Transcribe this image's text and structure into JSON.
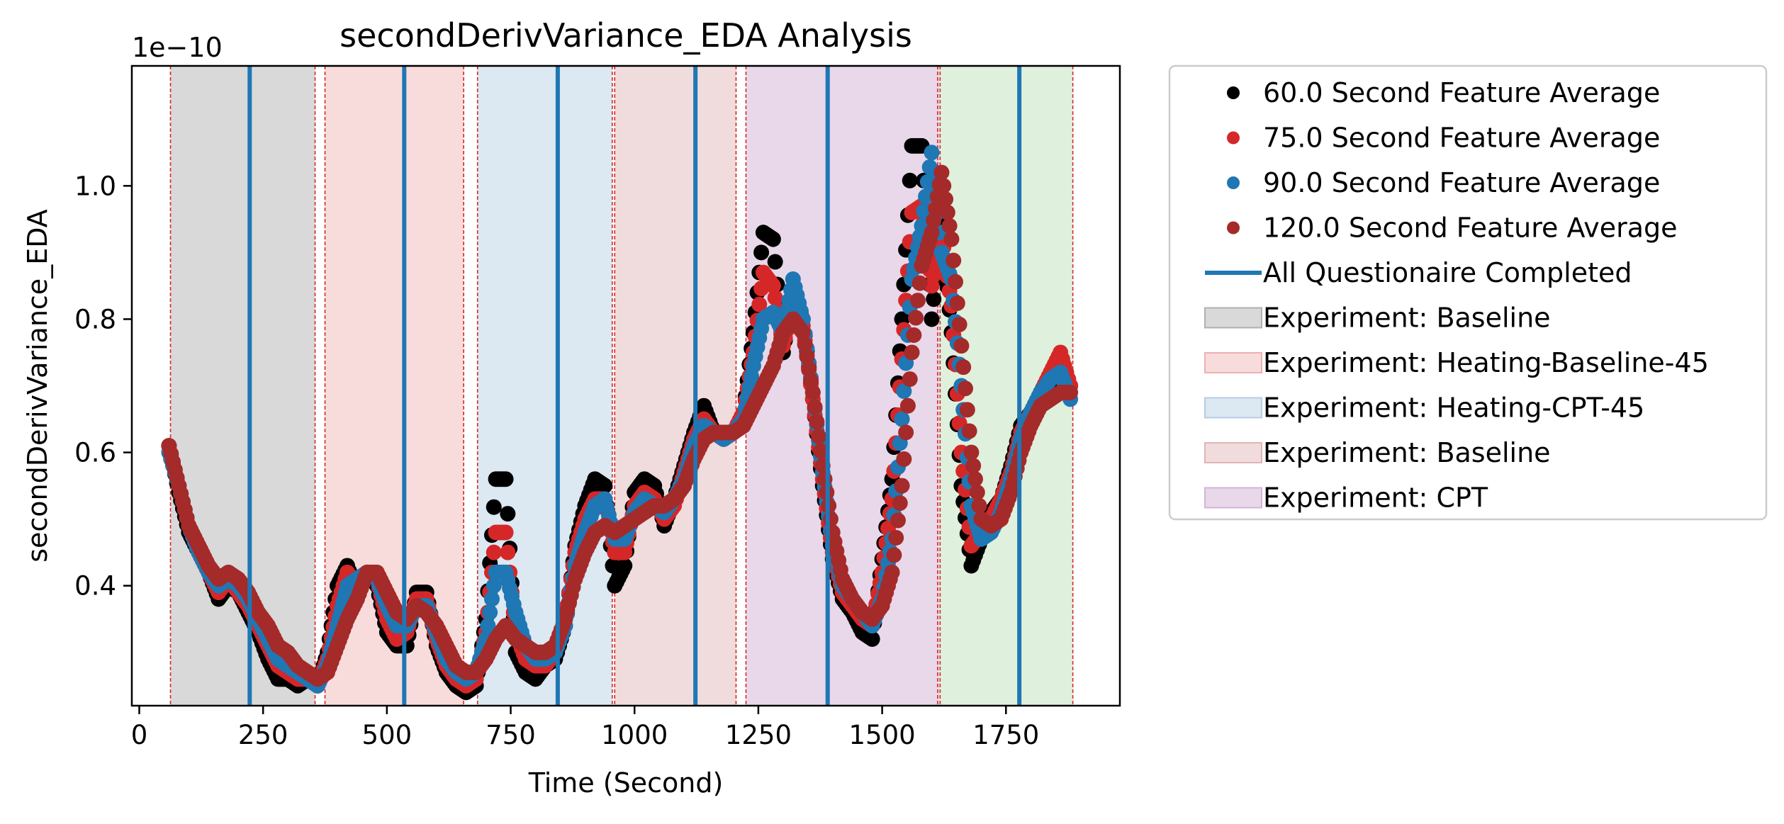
{
  "chart_data": {
    "type": "scatter",
    "title": "secondDerivVariance_EDA Analysis",
    "xlabel": "Time (Second)",
    "ylabel": "secondDerivVariance_EDA",
    "y_scale_note": "1e−10",
    "xlim": [
      -15,
      1980
    ],
    "ylim": [
      2.2e-11,
      1.18e-10
    ],
    "x_ticks": [
      {
        "value": 0,
        "label": "0"
      },
      {
        "value": 250,
        "label": "250"
      },
      {
        "value": 500,
        "label": "500"
      },
      {
        "value": 750,
        "label": "750"
      },
      {
        "value": 1000,
        "label": "1000"
      },
      {
        "value": 1250,
        "label": "1250"
      },
      {
        "value": 1500,
        "label": "1500"
      },
      {
        "value": 1750,
        "label": "1750"
      }
    ],
    "y_ticks": [
      {
        "value": 4e-11,
        "label": "0.4"
      },
      {
        "value": 6e-11,
        "label": "0.6"
      },
      {
        "value": 8e-11,
        "label": "0.8"
      },
      {
        "value": 1e-10,
        "label": "1.0"
      }
    ],
    "grid": false,
    "legend_placement": "outside-right",
    "spans": [
      {
        "start": 63,
        "end": 355,
        "color": "#d9d9d9",
        "label": "Experiment: Baseline"
      },
      {
        "start": 375,
        "end": 655,
        "color": "#f8dcdc",
        "label": "Experiment: Heating-Baseline-45"
      },
      {
        "start": 683,
        "end": 955,
        "color": "#dce8f2",
        "label": "Experiment: Heating-CPT-45"
      },
      {
        "start": 960,
        "end": 1205,
        "color": "#f0dcdc",
        "label": "Experiment: Baseline"
      },
      {
        "start": 1225,
        "end": 1615,
        "color": "#e8d8ea",
        "label": "Experiment: CPT"
      },
      {
        "start": 1615,
        "end": 1885,
        "color": "#dff0dc",
        "label": ""
      }
    ],
    "boundary_lines": [
      63,
      355,
      375,
      655,
      683,
      955,
      960,
      1205,
      1225,
      1612,
      1617,
      1885
    ],
    "questionnaire_lines": [
      223,
      535,
      845,
      1123,
      1390,
      1777
    ],
    "series": [
      {
        "name": "60.0 Second Feature Average",
        "color": "#000000",
        "x": [
          60,
          80,
          100,
          120,
          140,
          160,
          180,
          200,
          220,
          240,
          260,
          280,
          300,
          320,
          340,
          360,
          380,
          400,
          420,
          440,
          460,
          480,
          500,
          520,
          540,
          560,
          580,
          600,
          620,
          640,
          660,
          680,
          700,
          720,
          740,
          760,
          780,
          800,
          820,
          840,
          860,
          880,
          900,
          920,
          940,
          960,
          980,
          1000,
          1020,
          1040,
          1060,
          1080,
          1100,
          1120,
          1140,
          1160,
          1180,
          1200,
          1220,
          1240,
          1260,
          1280,
          1300,
          1320,
          1340,
          1360,
          1380,
          1400,
          1420,
          1440,
          1460,
          1480,
          1500,
          1520,
          1540,
          1560,
          1580,
          1600,
          1620,
          1640,
          1660,
          1680,
          1700,
          1720,
          1740,
          1760,
          1780,
          1800,
          1820,
          1840,
          1860,
          1880
        ],
        "y": [
          6.1e-11,
          5.4e-11,
          4.8e-11,
          4.5e-11,
          4.2e-11,
          3.8e-11,
          4e-11,
          3.9e-11,
          3.6e-11,
          3.3e-11,
          2.9e-11,
          2.6e-11,
          2.6e-11,
          2.5e-11,
          2.6e-11,
          2.5e-11,
          3e-11,
          4e-11,
          4.3e-11,
          3.9e-11,
          4.2e-11,
          4e-11,
          3.3e-11,
          3.1e-11,
          3.1e-11,
          3.9e-11,
          3.9e-11,
          3.1e-11,
          2.7e-11,
          2.5e-11,
          2.4e-11,
          2.5e-11,
          3.5e-11,
          5.6e-11,
          5.6e-11,
          3e-11,
          2.7e-11,
          2.6e-11,
          2.8e-11,
          2.9e-11,
          3.4e-11,
          4.6e-11,
          5.2e-11,
          5.6e-11,
          5.5e-11,
          4e-11,
          4.3e-11,
          5.4e-11,
          5.6e-11,
          5.5e-11,
          4.9e-11,
          5.3e-11,
          5.8e-11,
          6.3e-11,
          6.7e-11,
          6.3e-11,
          6.2e-11,
          6.3e-11,
          6.6e-11,
          7.8e-11,
          9.3e-11,
          9.2e-11,
          7.5e-11,
          8.4e-11,
          8e-11,
          6.8e-11,
          5.5e-11,
          4.4e-11,
          3.8e-11,
          3.6e-11,
          3.3e-11,
          3.2e-11,
          4.4e-11,
          5.6e-11,
          8e-11,
          1.06e-10,
          1.06e-10,
          8e-11,
          9.5e-11,
          7.8e-11,
          5.5e-11,
          4.3e-11,
          4.7e-11,
          5.1e-11,
          5.3e-11,
          5.8e-11,
          6.4e-11,
          6.6e-11,
          6.8e-11,
          7e-11,
          7.1e-11,
          7e-11
        ]
      },
      {
        "name": "75.0 Second Feature Average",
        "color": "#d62728",
        "x": [
          60,
          80,
          100,
          120,
          140,
          160,
          180,
          200,
          220,
          240,
          260,
          280,
          300,
          320,
          340,
          360,
          380,
          400,
          420,
          440,
          460,
          480,
          500,
          520,
          540,
          560,
          580,
          600,
          620,
          640,
          660,
          680,
          700,
          720,
          740,
          760,
          780,
          800,
          820,
          840,
          860,
          880,
          900,
          920,
          940,
          960,
          980,
          1000,
          1020,
          1040,
          1060,
          1080,
          1100,
          1120,
          1140,
          1160,
          1180,
          1200,
          1220,
          1240,
          1260,
          1280,
          1300,
          1320,
          1340,
          1360,
          1380,
          1400,
          1420,
          1440,
          1460,
          1480,
          1500,
          1520,
          1540,
          1560,
          1580,
          1600,
          1620,
          1640,
          1660,
          1680,
          1700,
          1720,
          1740,
          1760,
          1780,
          1800,
          1820,
          1840,
          1860,
          1880
        ],
        "y": [
          6.1e-11,
          5.5e-11,
          4.9e-11,
          4.5e-11,
          4.2e-11,
          3.9e-11,
          4.1e-11,
          3.9e-11,
          3.7e-11,
          3.4e-11,
          3.1e-11,
          2.8e-11,
          2.7e-11,
          2.6e-11,
          2.6e-11,
          2.5e-11,
          2.9e-11,
          3.7e-11,
          4.2e-11,
          4e-11,
          4.2e-11,
          4.1e-11,
          3.5e-11,
          3.2e-11,
          3.3e-11,
          3.8e-11,
          3.8e-11,
          3.2e-11,
          2.8e-11,
          2.6e-11,
          2.5e-11,
          2.6e-11,
          3.3e-11,
          4.8e-11,
          4.8e-11,
          3.3e-11,
          2.9e-11,
          2.8e-11,
          2.8e-11,
          3e-11,
          3.5e-11,
          4.5e-11,
          5e-11,
          5.3e-11,
          5.3e-11,
          4.5e-11,
          4.5e-11,
          5.2e-11,
          5.4e-11,
          5.3e-11,
          5e-11,
          5.2e-11,
          5.7e-11,
          6.2e-11,
          6.5e-11,
          6.3e-11,
          6.2e-11,
          6.3e-11,
          6.6e-11,
          7.5e-11,
          8.7e-11,
          8.5e-11,
          7.6e-11,
          8.2e-11,
          7.9e-11,
          6.8e-11,
          5.6e-11,
          4.5e-11,
          3.9e-11,
          3.7e-11,
          3.5e-11,
          3.4e-11,
          4.2e-11,
          5.3e-11,
          7.4e-11,
          9.6e-11,
          9.7e-11,
          8.5e-11,
          9.3e-11,
          8.2e-11,
          6e-11,
          4.6e-11,
          4.8e-11,
          5e-11,
          5.3e-11,
          5.7e-11,
          6.3e-11,
          6.6e-11,
          6.9e-11,
          7.2e-11,
          7.5e-11,
          7e-11
        ]
      },
      {
        "name": "90.0 Second Feature Average",
        "color": "#1f77b4",
        "x": [
          60,
          80,
          100,
          120,
          140,
          160,
          180,
          200,
          220,
          240,
          260,
          280,
          300,
          320,
          340,
          360,
          380,
          400,
          420,
          440,
          460,
          480,
          500,
          520,
          540,
          560,
          580,
          600,
          620,
          640,
          660,
          680,
          700,
          720,
          740,
          760,
          780,
          800,
          820,
          840,
          860,
          880,
          900,
          920,
          940,
          960,
          980,
          1000,
          1020,
          1040,
          1060,
          1080,
          1100,
          1120,
          1140,
          1160,
          1180,
          1200,
          1220,
          1240,
          1260,
          1280,
          1300,
          1320,
          1340,
          1360,
          1380,
          1400,
          1420,
          1440,
          1460,
          1480,
          1500,
          1520,
          1540,
          1560,
          1580,
          1600,
          1620,
          1640,
          1660,
          1680,
          1700,
          1720,
          1740,
          1760,
          1780,
          1800,
          1820,
          1840,
          1860,
          1880
        ],
        "y": [
          6e-11,
          5.5e-11,
          4.9e-11,
          4.5e-11,
          4.2e-11,
          4e-11,
          4.1e-11,
          4e-11,
          3.8e-11,
          3.5e-11,
          3.2e-11,
          2.9e-11,
          2.8e-11,
          2.7e-11,
          2.6e-11,
          2.5e-11,
          2.8e-11,
          3.4e-11,
          4e-11,
          4.1e-11,
          4.2e-11,
          4.1e-11,
          3.7e-11,
          3.4e-11,
          3.4e-11,
          3.7e-11,
          3.7e-11,
          3.3e-11,
          2.9e-11,
          2.7e-11,
          2.6e-11,
          2.7e-11,
          3.2e-11,
          4.2e-11,
          4.2e-11,
          3.6e-11,
          3.1e-11,
          2.9e-11,
          2.9e-11,
          3e-11,
          3.4e-11,
          4.3e-11,
          4.8e-11,
          5.2e-11,
          5.3e-11,
          4.7e-11,
          4.7e-11,
          5.1e-11,
          5.3e-11,
          5.2e-11,
          5.1e-11,
          5.3e-11,
          5.6e-11,
          6.1e-11,
          6.4e-11,
          6.3e-11,
          6.2e-11,
          6.3e-11,
          6.5e-11,
          7.3e-11,
          8e-11,
          8.1e-11,
          7.8e-11,
          8.6e-11,
          8e-11,
          6.9e-11,
          5.7e-11,
          4.6e-11,
          4e-11,
          3.8e-11,
          3.6e-11,
          3.4e-11,
          3.8e-11,
          4.7e-11,
          6.5e-11,
          8.6e-11,
          9.4e-11,
          1.05e-10,
          9e-11,
          8.6e-11,
          7e-11,
          5.2e-11,
          4.7e-11,
          4.8e-11,
          5.1e-11,
          5.6e-11,
          6.2e-11,
          6.6e-11,
          6.9e-11,
          7.1e-11,
          7.2e-11,
          6.8e-11
        ]
      },
      {
        "name": "120.0 Second Feature Average",
        "color": "#a52a2a",
        "x": [
          60,
          80,
          100,
          120,
          140,
          160,
          180,
          200,
          220,
          240,
          260,
          280,
          300,
          320,
          340,
          360,
          380,
          400,
          420,
          440,
          460,
          480,
          500,
          520,
          540,
          560,
          580,
          600,
          620,
          640,
          660,
          680,
          700,
          720,
          740,
          760,
          780,
          800,
          820,
          840,
          860,
          880,
          900,
          920,
          940,
          960,
          980,
          1000,
          1020,
          1040,
          1060,
          1080,
          1100,
          1120,
          1140,
          1160,
          1180,
          1200,
          1220,
          1240,
          1260,
          1280,
          1300,
          1320,
          1340,
          1360,
          1380,
          1400,
          1420,
          1440,
          1460,
          1480,
          1500,
          1520,
          1540,
          1560,
          1580,
          1600,
          1620,
          1640,
          1660,
          1680,
          1700,
          1720,
          1740,
          1760,
          1780,
          1800,
          1820,
          1840,
          1860,
          1880
        ],
        "y": [
          6.1e-11,
          5.5e-11,
          4.9e-11,
          4.6e-11,
          4.3e-11,
          4.1e-11,
          4.2e-11,
          4.1e-11,
          3.9e-11,
          3.6e-11,
          3.4e-11,
          3.1e-11,
          3e-11,
          2.8e-11,
          2.7e-11,
          2.6e-11,
          2.7e-11,
          3.1e-11,
          3.5e-11,
          3.8e-11,
          4.2e-11,
          4.2e-11,
          3.9e-11,
          3.6e-11,
          3.5e-11,
          3.7e-11,
          3.6e-11,
          3.4e-11,
          3.1e-11,
          2.8e-11,
          2.7e-11,
          2.7e-11,
          2.9e-11,
          3.2e-11,
          3.4e-11,
          3.2e-11,
          3.1e-11,
          3e-11,
          3e-11,
          3.1e-11,
          3.5e-11,
          4.1e-11,
          4.5e-11,
          4.8e-11,
          4.9e-11,
          4.8e-11,
          4.9e-11,
          5e-11,
          5.1e-11,
          5.2e-11,
          5.2e-11,
          5.3e-11,
          5.5e-11,
          5.9e-11,
          6.2e-11,
          6.3e-11,
          6.3e-11,
          6.3e-11,
          6.4e-11,
          6.7e-11,
          7e-11,
          7.3e-11,
          7.8e-11,
          8e-11,
          7.8e-11,
          6.9e-11,
          5.8e-11,
          4.8e-11,
          4.1e-11,
          3.8e-11,
          3.6e-11,
          3.5e-11,
          3.7e-11,
          4.2e-11,
          5.5e-11,
          7.5e-11,
          8.8e-11,
          9.3e-11,
          1.02e-10,
          9.2e-11,
          7.6e-11,
          6e-11,
          5e-11,
          4.9e-11,
          5e-11,
          5.4e-11,
          6e-11,
          6.4e-11,
          6.7e-11,
          6.8e-11,
          6.9e-11,
          6.9e-11
        ]
      }
    ],
    "legend": [
      {
        "kind": "marker",
        "color": "#000000",
        "label": "60.0 Second Feature Average"
      },
      {
        "kind": "marker",
        "color": "#d62728",
        "label": "75.0 Second Feature Average"
      },
      {
        "kind": "marker",
        "color": "#1f77b4",
        "label": "90.0 Second Feature Average"
      },
      {
        "kind": "marker",
        "color": "#a52a2a",
        "label": "120.0 Second Feature Average"
      },
      {
        "kind": "line",
        "color": "#1f77b4",
        "label": "All Questionaire Completed"
      },
      {
        "kind": "patch",
        "color": "#d9d9d9",
        "edge": "#b0b0b0",
        "label": "Experiment: Baseline"
      },
      {
        "kind": "patch",
        "color": "#f8dcdc",
        "edge": "#efb0b0",
        "label": "Experiment: Heating-Baseline-45"
      },
      {
        "kind": "patch",
        "color": "#dce8f2",
        "edge": "#b6cde4",
        "label": "Experiment: Heating-CPT-45"
      },
      {
        "kind": "patch",
        "color": "#f0dcdc",
        "edge": "#e0b4b4",
        "label": "Experiment: Baseline"
      },
      {
        "kind": "patch",
        "color": "#e8d8ea",
        "edge": "#d2b4d8",
        "label": "Experiment: CPT"
      }
    ]
  }
}
